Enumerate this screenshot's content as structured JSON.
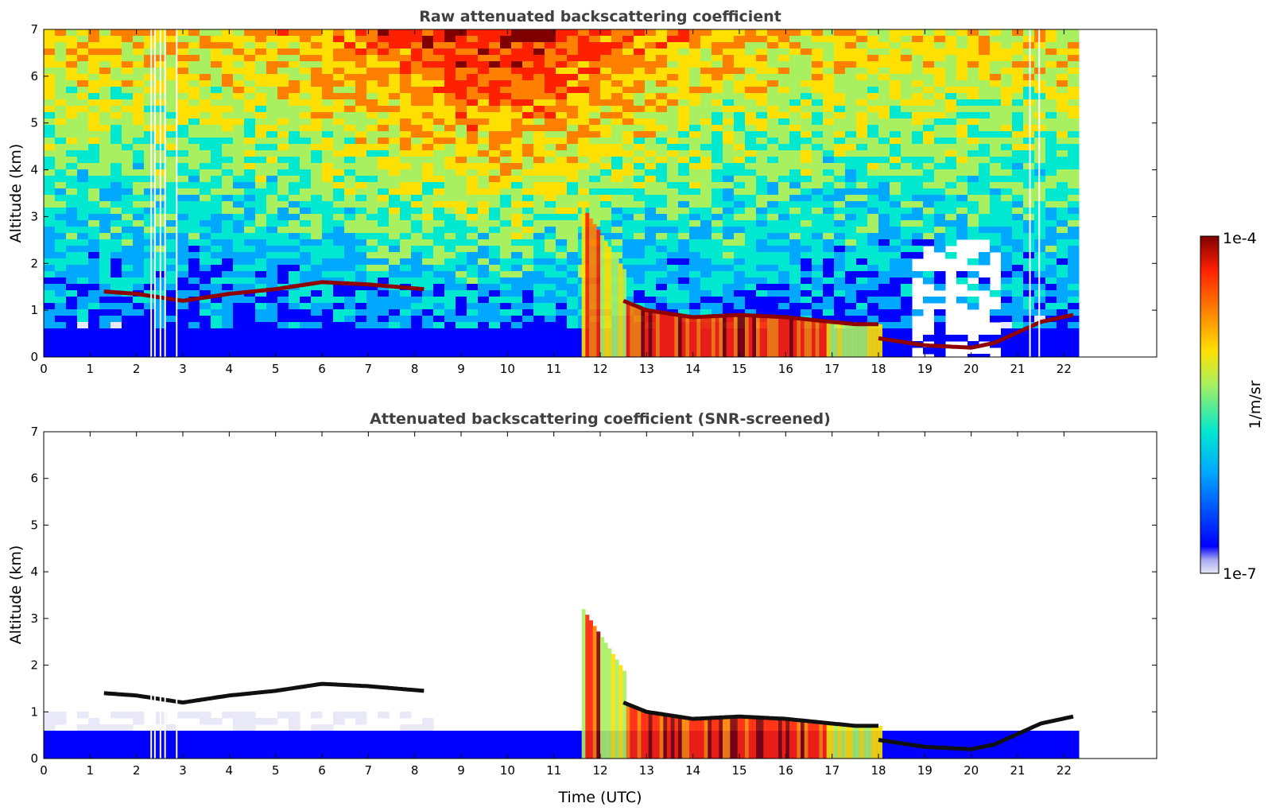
{
  "chart_data": [
    {
      "type": "heatmap",
      "title": "Raw attenuated backscattering coefficient",
      "ylabel": "Altitude (km)",
      "xlabel": "",
      "xlim": [
        0,
        24
      ],
      "ylim": [
        0,
        7
      ],
      "x_ticks": [
        0,
        1,
        2,
        3,
        4,
        5,
        6,
        7,
        8,
        9,
        10,
        11,
        12,
        13,
        14,
        15,
        16,
        17,
        18,
        19,
        20,
        21,
        22
      ],
      "y_ticks": [
        0,
        1,
        2,
        3,
        4,
        5,
        6,
        7
      ],
      "data_end_time": 22.2,
      "noise": true,
      "missing_columns": [
        2.3,
        2.38,
        2.5,
        2.6,
        2.85,
        21.25,
        21.45
      ],
      "layers": [
        {
          "t": [
            1.3,
            2,
            3,
            4,
            5,
            6,
            7,
            8.2
          ],
          "alt": [
            1.4,
            1.35,
            1.2,
            1.35,
            1.45,
            1.6,
            1.55,
            1.45
          ]
        },
        {
          "t": [
            12.5,
            13,
            14,
            15,
            16,
            17,
            17.5,
            18
          ],
          "alt": [
            1.2,
            1.0,
            0.85,
            0.9,
            0.85,
            0.75,
            0.7,
            0.7
          ]
        },
        {
          "t": [
            18,
            19,
            20,
            20.5,
            21.5,
            22.2
          ],
          "alt": [
            0.4,
            0.25,
            0.2,
            0.3,
            0.75,
            0.9
          ]
        }
      ]
    },
    {
      "type": "heatmap",
      "title": "Attenuated backscattering coefficient (SNR-screened)",
      "ylabel": "Altitude (km)",
      "xlabel": "Time (UTC)",
      "xlim": [
        0,
        24
      ],
      "ylim": [
        0,
        7
      ],
      "x_ticks": [
        0,
        1,
        2,
        3,
        4,
        5,
        6,
        7,
        8,
        9,
        10,
        11,
        12,
        13,
        14,
        15,
        16,
        17,
        18,
        19,
        20,
        21,
        22
      ],
      "y_ticks": [
        0,
        1,
        2,
        3,
        4,
        5,
        6,
        7
      ],
      "data_end_time": 22.2,
      "noise": false,
      "missing_columns": [
        2.3,
        2.38,
        2.5,
        2.6,
        2.85
      ]
    }
  ],
  "colorbar": {
    "label": "1/m/sr",
    "max_label": "1e-4",
    "min_label": "1e-7",
    "scale": "log",
    "colormap": "jet",
    "colors": [
      "#e8e8f8",
      "#0000ff",
      "#00a8ff",
      "#00e8d0",
      "#a8f060",
      "#ffe000",
      "#ff8000",
      "#ff2000",
      "#800000"
    ]
  }
}
